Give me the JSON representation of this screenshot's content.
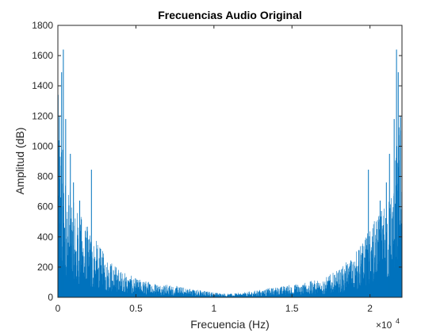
{
  "chart_data": {
    "type": "line",
    "title": "Frecuencias Audio Original",
    "xlabel": "Frecuencia (Hz)",
    "ylabel": "Amplitud (dB)",
    "x_multiplier_label": "×10",
    "x_multiplier_exp": "4",
    "xlim": [
      0,
      22050
    ],
    "ylim": [
      0,
      1800
    ],
    "xticks": [
      0,
      5000,
      10000,
      15000,
      20000
    ],
    "xtick_labels": [
      "0",
      "0.5",
      "1",
      "1.5",
      "2"
    ],
    "yticks": [
      0,
      200,
      400,
      600,
      800,
      1000,
      1200,
      1400,
      1600,
      1800
    ],
    "ytick_labels": [
      "0",
      "200",
      "400",
      "600",
      "800",
      "1000",
      "1200",
      "1400",
      "1600",
      "1800"
    ],
    "line_color": "#0072BD",
    "grid": false,
    "spectrum_envelope": {
      "x": [
        0,
        200,
        500,
        1000,
        2000,
        3000,
        4000,
        5000,
        6000,
        7000,
        8000,
        9000,
        10000,
        11000,
        12000,
        13000,
        14000,
        15000,
        16000,
        17000,
        18000,
        19000,
        20000,
        21000,
        21500,
        22050
      ],
      "y": [
        1200,
        1000,
        700,
        550,
        400,
        250,
        160,
        110,
        90,
        75,
        60,
        45,
        30,
        20,
        30,
        45,
        60,
        75,
        90,
        110,
        160,
        250,
        400,
        550,
        700,
        1200
      ]
    },
    "peaks": [
      {
        "x": 350,
        "y": 1640
      },
      {
        "x": 240,
        "y": 1490
      },
      {
        "x": 100,
        "y": 1200
      },
      {
        "x": 500,
        "y": 1180
      },
      {
        "x": 800,
        "y": 950
      },
      {
        "x": 1000,
        "y": 760
      },
      {
        "x": 2150,
        "y": 845
      },
      {
        "x": 1400,
        "y": 640
      },
      {
        "x": 21700,
        "y": 1640
      },
      {
        "x": 21810,
        "y": 1490
      },
      {
        "x": 21950,
        "y": 1200
      },
      {
        "x": 21550,
        "y": 1180
      },
      {
        "x": 21250,
        "y": 950
      },
      {
        "x": 21050,
        "y": 760
      },
      {
        "x": 19900,
        "y": 845
      },
      {
        "x": 20650,
        "y": 640
      }
    ]
  }
}
